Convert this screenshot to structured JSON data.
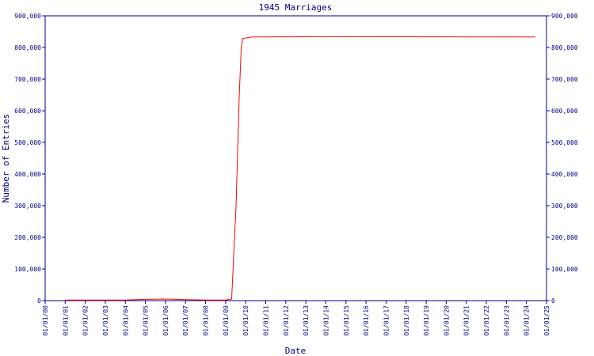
{
  "chart_data": {
    "type": "line",
    "title": "1945 Marriages",
    "x_label": "Date",
    "y_label": "Number of Entries",
    "x": [
      1,
      4,
      5,
      6,
      7,
      8,
      9,
      9.3,
      9.52,
      9.68,
      9.78,
      9.85,
      10.3,
      13.6,
      24.45
    ],
    "series": [
      {
        "color": "#ff0000",
        "values": [
          2000,
          2000,
          4000,
          5000,
          3000,
          2000,
          2000,
          5000,
          300000,
          650000,
          800000,
          828000,
          833000,
          834000,
          833000
        ]
      }
    ],
    "xlim": [
      0,
      25
    ],
    "xticks": [
      {
        "value": 0,
        "label": "01/01/00"
      },
      {
        "value": 1,
        "label": "01/01/01"
      },
      {
        "value": 2,
        "label": "01/01/02"
      },
      {
        "value": 3,
        "label": "01/01/03"
      },
      {
        "value": 4,
        "label": "01/01/04"
      },
      {
        "value": 5,
        "label": "01/01/05"
      },
      {
        "value": 6,
        "label": "01/01/06"
      },
      {
        "value": 7,
        "label": "01/01/07"
      },
      {
        "value": 8,
        "label": "01/01/08"
      },
      {
        "value": 9,
        "label": "01/01/09"
      },
      {
        "value": 10,
        "label": "01/01/10"
      },
      {
        "value": 11,
        "label": "01/01/11"
      },
      {
        "value": 12,
        "label": "01/01/12"
      },
      {
        "value": 13,
        "label": "01/01/13"
      },
      {
        "value": 14,
        "label": "01/01/14"
      },
      {
        "value": 15,
        "label": "01/01/15"
      },
      {
        "value": 16,
        "label": "01/01/16"
      },
      {
        "value": 17,
        "label": "01/01/17"
      },
      {
        "value": 18,
        "label": "01/01/18"
      },
      {
        "value": 19,
        "label": "01/01/19"
      },
      {
        "value": 20,
        "label": "01/01/20"
      },
      {
        "value": 21,
        "label": "01/01/21"
      },
      {
        "value": 22,
        "label": "01/01/22"
      },
      {
        "value": 23,
        "label": "01/01/23"
      },
      {
        "value": 24,
        "label": "01/01/24"
      },
      {
        "value": 25,
        "label": "01/01/25"
      }
    ],
    "ylim": [
      0,
      900000
    ],
    "yticks": [
      0,
      {
        "value": 100000,
        "label": "100,000"
      },
      {
        "value": 200000,
        "label": "200,000"
      },
      {
        "value": 300000,
        "label": "300,000"
      },
      {
        "value": 400000,
        "label": "400,000"
      },
      {
        "value": 500000,
        "label": "500,000"
      },
      {
        "value": 600000,
        "label": "600,000"
      },
      {
        "value": 700000,
        "label": "700,000"
      },
      {
        "value": 800000,
        "label": "800,000"
      },
      {
        "value": 900000,
        "label": "900,000"
      }
    ],
    "y2lim": [
      0,
      900000
    ],
    "y2ticks": [
      0,
      {
        "value": 100000,
        "label": "100,000"
      },
      {
        "value": 200000,
        "label": "200,000"
      },
      {
        "value": 300000,
        "label": "300,000"
      },
      {
        "value": 400000,
        "label": "400,000"
      },
      {
        "value": 500000,
        "label": "500,000"
      },
      {
        "value": 600000,
        "label": "600,000"
      },
      {
        "value": 700000,
        "label": "700,000"
      },
      {
        "value": 800000,
        "label": "800,000"
      },
      {
        "value": 900000,
        "label": "900,000"
      }
    ]
  }
}
